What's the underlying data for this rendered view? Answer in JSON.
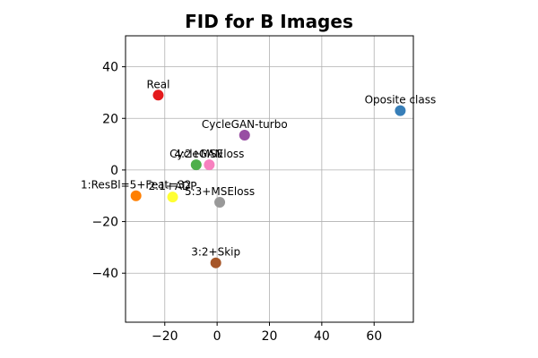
{
  "chart_data": {
    "type": "scatter",
    "title": "FID for B Images",
    "xlabel": "",
    "ylabel": "",
    "xlim": [
      -35,
      75
    ],
    "ylim": [
      -59,
      52
    ],
    "xticks": [
      -20,
      0,
      20,
      40,
      60
    ],
    "yticks": [
      -40,
      -20,
      0,
      20,
      40
    ],
    "xtick_labels": [
      "−20",
      "0",
      "20",
      "40",
      "60"
    ],
    "ytick_labels": [
      "−40",
      "−20",
      "0",
      "20",
      "40"
    ],
    "grid": true,
    "points": [
      {
        "label": "Real",
        "x": -22.5,
        "y": 29,
        "color": "#e41a1c"
      },
      {
        "label": "Oposite class",
        "x": 70,
        "y": 23,
        "color": "#377eb8"
      },
      {
        "label": "CycleGAN-turbo",
        "x": 10.5,
        "y": 13.5,
        "color": "#984ea3"
      },
      {
        "label": "CycleGAN",
        "x": -8,
        "y": 2,
        "color": "#4daf4a"
      },
      {
        "label": "4:2+MSEloss",
        "x": -3,
        "y": 2,
        "color": "#f781bf"
      },
      {
        "label": "1:ResBl=5+Feat=32",
        "x": -31,
        "y": -10,
        "color": "#ff7f00"
      },
      {
        "label": "2:1+ADP",
        "x": -17,
        "y": -10.5,
        "color": "#ffff33"
      },
      {
        "label": "5:3+MSEloss",
        "x": 1,
        "y": -12.5,
        "color": "#999999"
      },
      {
        "label": "3:2+Skip",
        "x": -0.5,
        "y": -36,
        "color": "#a65628"
      }
    ]
  }
}
